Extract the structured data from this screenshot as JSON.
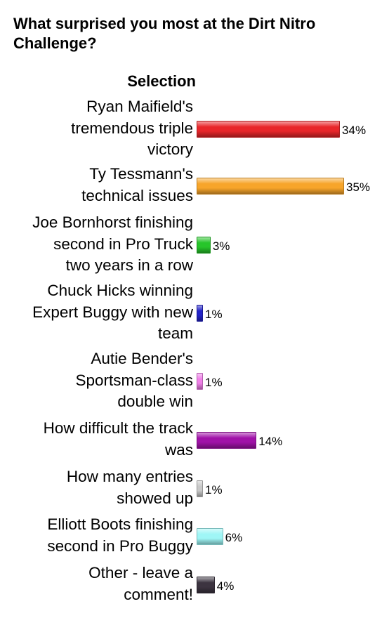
{
  "chart_data": {
    "type": "bar",
    "title": "What surprised you most at the Dirt Nitro Challenge?",
    "column_header": "Selection",
    "xlim": [
      0,
      35
    ],
    "items": [
      {
        "label_lines": [
          "Ryan Maifield's",
          "tremendous triple",
          "victory"
        ],
        "value": 34,
        "value_label": "34%",
        "color": "#e8262a"
      },
      {
        "label_lines": [
          "Ty Tessmann's",
          "technical issues"
        ],
        "value": 35,
        "value_label": "35%",
        "color": "#f7a52a"
      },
      {
        "label_lines": [
          "Joe Bornhorst finishing",
          "second in Pro Truck",
          "two years in a row"
        ],
        "value": 3,
        "value_label": "3%",
        "color": "#27c52a"
      },
      {
        "label_lines": [
          "Chuck Hicks winning",
          "Expert Buggy with new",
          "team"
        ],
        "value": 1,
        "value_label": "1%",
        "color": "#2424c8"
      },
      {
        "label_lines": [
          "Autie Bender's",
          "Sportsman-class",
          "double win"
        ],
        "value": 1,
        "value_label": "1%",
        "color": "#f080e8"
      },
      {
        "label_lines": [
          "How difficult the track",
          "was"
        ],
        "value": 14,
        "value_label": "14%",
        "color": "#a012a8"
      },
      {
        "label_lines": [
          "How many entries",
          "showed up"
        ],
        "value": 1,
        "value_label": "1%",
        "color": "#c8c8c8"
      },
      {
        "label_lines": [
          "Elliott Boots finishing",
          "second in Pro Buggy"
        ],
        "value": 6,
        "value_label": "6%",
        "color": "#9ff6f6"
      },
      {
        "label_lines": [
          "Other - leave a",
          "comment!"
        ],
        "value": 4,
        "value_label": "4%",
        "color": "#3c3440"
      }
    ]
  }
}
